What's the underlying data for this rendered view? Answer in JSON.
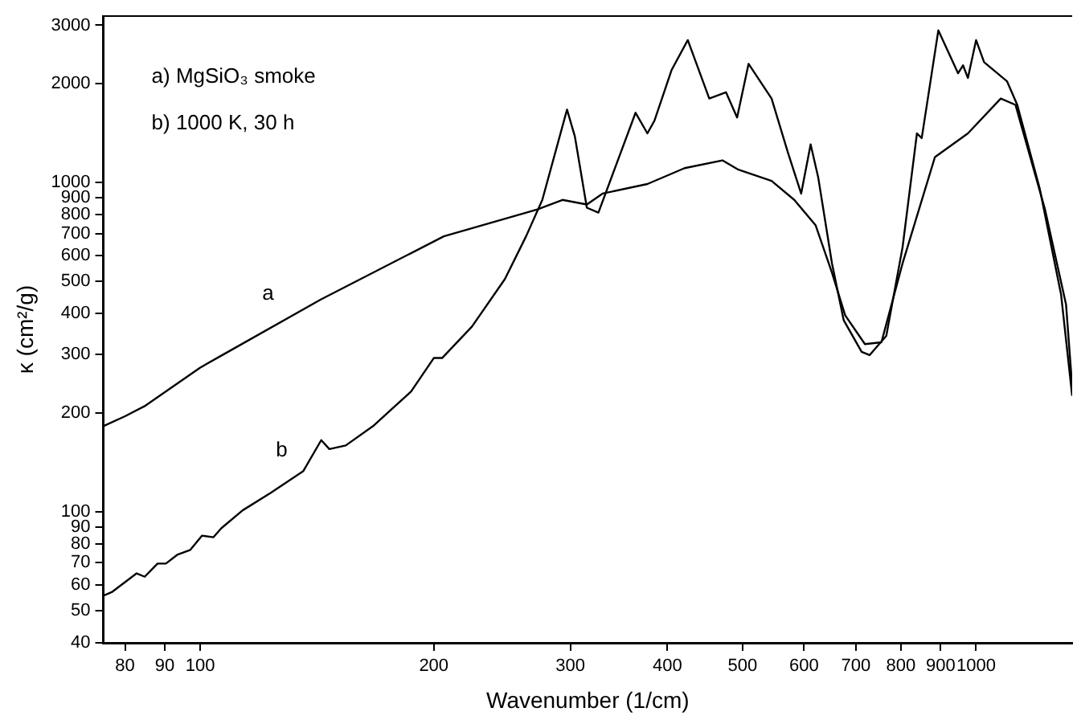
{
  "chart_data": {
    "type": "line",
    "xlabel": "Wavenumber (1/cm)",
    "ylabel": "κ (cm²/g)",
    "log": "xy",
    "grid": false,
    "legend": false,
    "marker": "none",
    "line_style": "solid",
    "xlim": [
      75,
      1330
    ],
    "ylim": [
      40,
      3200
    ],
    "xticks": [
      80,
      90,
      100,
      200,
      300,
      400,
      500,
      600,
      700,
      800,
      900,
      1000
    ],
    "yticks": [
      40,
      50,
      60,
      70,
      80,
      90,
      100,
      200,
      300,
      400,
      500,
      600,
      700,
      800,
      900,
      1000,
      2000,
      3000
    ],
    "annotations": [
      "a) MgSiO₃ smoke",
      "b) 1000 K, 30 h"
    ],
    "series": [
      {
        "name": "a",
        "color": "#000000",
        "x": [
          75,
          80,
          85,
          100,
          107,
          143,
          206,
          272,
          293,
          315,
          330,
          377,
          421,
          471,
          494,
          545,
          583,
          621,
          652,
          678,
          719,
          755,
          804,
          885,
          976,
          1076,
          1124,
          1227,
          1306,
          1330
        ],
        "values": [
          182,
          195,
          210,
          274,
          300,
          441,
          686,
          828,
          885,
          857,
          925,
          989,
          1105,
          1167,
          1093,
          1011,
          885,
          742,
          532,
          395,
          323,
          327,
          568,
          1194,
          1409,
          1798,
          1720,
          828,
          426,
          240
        ]
      },
      {
        "name": "b",
        "color": "#000000",
        "x": [
          75,
          76.9,
          82.8,
          84.8,
          88.1,
          90.3,
          93.4,
          97.1,
          100.5,
          104,
          106.5,
          113.4,
          123.2,
          135.8,
          143.2,
          146.7,
          154,
          167,
          187,
          200,
          205,
          224,
          247,
          263,
          276,
          297,
          304,
          315,
          326,
          364,
          377,
          385,
          405,
          425,
          453,
          476,
          492,
          509,
          545,
          572,
          595,
          612,
          626,
          652,
          675,
          712,
          729,
          766,
          804,
          839,
          851,
          894,
          948,
          962,
          976,
          1000,
          1024,
          1096,
          1130,
          1208,
          1287,
          1330
        ],
        "values": [
          55.6,
          57,
          65,
          63.5,
          69.6,
          69.6,
          74,
          76.6,
          84.6,
          83.7,
          89.2,
          101,
          114,
          133,
          165,
          155,
          159,
          182,
          232,
          293,
          293,
          365,
          509,
          686,
          885,
          1664,
          1379,
          838,
          810,
          1628,
          1409,
          1540,
          2193,
          2705,
          1798,
          1879,
          1575,
          2292,
          1798,
          1234,
          925,
          1304,
          1034,
          568,
          382,
          306,
          299,
          342,
          636,
          1409,
          1363,
          2895,
          2145,
          2268,
          2075,
          2705,
          2318,
          2029,
          1720,
          957,
          456,
          225
        ]
      }
    ]
  }
}
